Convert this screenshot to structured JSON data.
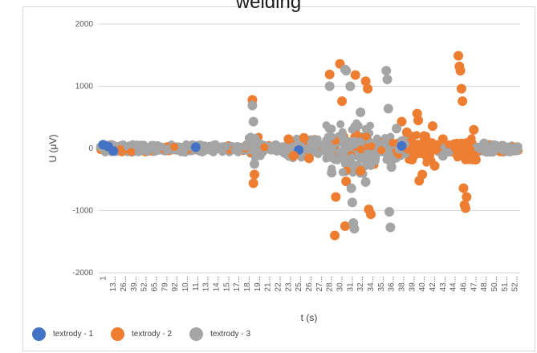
{
  "chart_data": {
    "type": "scatter",
    "title": "welding",
    "xlabel": "t (s)",
    "ylabel": "U (μV)",
    "ylim": [
      -2000,
      2000
    ],
    "yticks": [
      2000,
      1000,
      0,
      -1000,
      -2000
    ],
    "xtick_labels": [
      "1",
      "13...",
      "26...",
      "39...",
      "52...",
      "65...",
      "79...",
      "92...",
      "10...",
      "11...",
      "13...",
      "14...",
      "15...",
      "17...",
      "18...",
      "19...",
      "21...",
      "22...",
      "23...",
      "25...",
      "26...",
      "27...",
      "28...",
      "30...",
      "31...",
      "32...",
      "34...",
      "35...",
      "36...",
      "38...",
      "39...",
      "40...",
      "42...",
      "43...",
      "44...",
      "46...",
      "47...",
      "48...",
      "50...",
      "51...",
      "52..."
    ],
    "grid": "horizontal",
    "legend_position": "bottom-left",
    "series": [
      {
        "name": "textrody - 1",
        "color": "#4472c4",
        "points": [
          [
            1,
            60
          ],
          [
            1.5,
            30
          ],
          [
            2,
            -40
          ],
          [
            10,
            20
          ],
          [
            20,
            -25
          ],
          [
            30,
            40
          ]
        ]
      },
      {
        "name": "textrody - 2",
        "color": "#ed7d31",
        "points": [
          [
            15.5,
            780
          ],
          [
            15.6,
            -560
          ],
          [
            15.7,
            -420
          ],
          [
            19,
            150
          ],
          [
            19.5,
            -120
          ],
          [
            20.5,
            170
          ],
          [
            21,
            -160
          ],
          [
            23,
            1190
          ],
          [
            23.5,
            -1400
          ],
          [
            23.6,
            -780
          ],
          [
            24,
            1360
          ],
          [
            24.2,
            760
          ],
          [
            24.5,
            -1250
          ],
          [
            24.6,
            -530
          ],
          [
            25.5,
            1180
          ],
          [
            26,
            -360
          ],
          [
            26.5,
            1080
          ],
          [
            26.7,
            960
          ],
          [
            26.8,
            -980
          ],
          [
            27,
            -1060
          ],
          [
            30.5,
            260
          ],
          [
            31,
            -180
          ],
          [
            30,
            430
          ],
          [
            31.5,
            560
          ],
          [
            31.6,
            450
          ],
          [
            31.7,
            -520
          ],
          [
            32,
            -420
          ],
          [
            33,
            360
          ],
          [
            33.2,
            -280
          ],
          [
            34,
            150
          ],
          [
            35.5,
            1490
          ],
          [
            35.6,
            1320
          ],
          [
            35.7,
            1250
          ],
          [
            35.8,
            960
          ],
          [
            35.9,
            760
          ],
          [
            36,
            -640
          ],
          [
            36.1,
            -910
          ],
          [
            36.2,
            -960
          ],
          [
            36.3,
            -780
          ],
          [
            37,
            300
          ],
          [
            37.2,
            -180
          ]
        ]
      },
      {
        "name": "textrody - 3",
        "color": "#a5a5a5",
        "points": [
          [
            15.5,
            690
          ],
          [
            15.6,
            430
          ],
          [
            15.7,
            -250
          ],
          [
            23,
            1000
          ],
          [
            23.2,
            -390
          ],
          [
            24.5,
            1270
          ],
          [
            24.6,
            1250
          ],
          [
            25,
            1000
          ],
          [
            25.1,
            -640
          ],
          [
            25.2,
            -870
          ],
          [
            25.3,
            -1200
          ],
          [
            25.4,
            -1290
          ],
          [
            26,
            580
          ],
          [
            26.5,
            -540
          ],
          [
            28.5,
            1250
          ],
          [
            28.6,
            1110
          ],
          [
            28.7,
            640
          ],
          [
            28.8,
            -1020
          ],
          [
            28.9,
            -1270
          ],
          [
            29,
            -300
          ],
          [
            29.5,
            320
          ],
          [
            34,
            -120
          ],
          [
            38,
            80
          ]
        ]
      }
    ]
  }
}
